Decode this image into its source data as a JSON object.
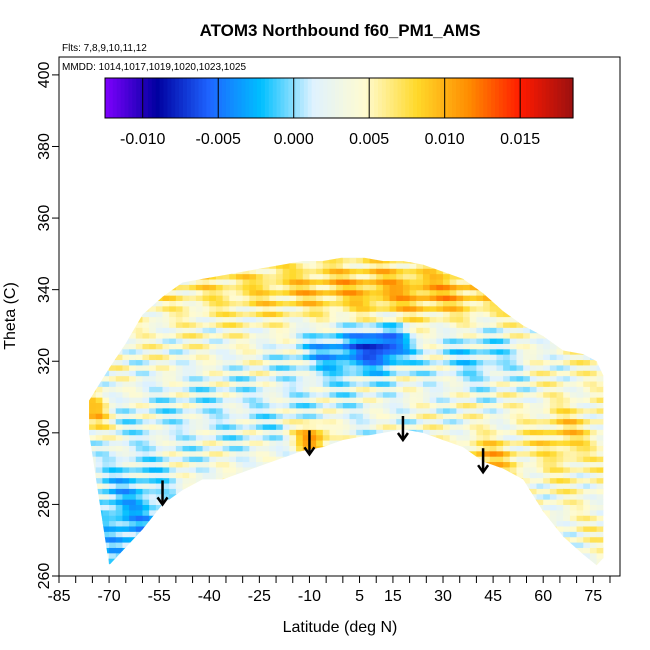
{
  "chart_data": {
    "type": "heatmap",
    "title": "ATOM3 Northbound f60_PM1_AMS",
    "subtitle_lines": [
      "Flts: 7,8,9,10,11,12",
      "MMDD: 1014,1017,1019,1020,1023,1025"
    ],
    "xlabel": "Latitude (deg N)",
    "ylabel": "Theta (C)",
    "xlim": [
      -85,
      83
    ],
    "ylim": [
      260,
      405
    ],
    "x_tick_labels": [
      "-85",
      "-70",
      "-55",
      "-40",
      "-25",
      "-10",
      "5",
      "15",
      "30",
      "45",
      "60",
      "75"
    ],
    "x_tick_values": [
      -85,
      -70,
      -55,
      -40,
      -25,
      -10,
      5,
      15,
      30,
      45,
      60,
      75
    ],
    "y_tick_labels": [
      "260",
      "280",
      "300",
      "320",
      "340",
      "360",
      "380",
      "400"
    ],
    "y_tick_values": [
      260,
      280,
      300,
      320,
      340,
      360,
      380,
      400
    ],
    "colorbar": {
      "min": -0.0125,
      "max": 0.0185,
      "tick_values": [
        -0.01,
        -0.005,
        0.0,
        0.005,
        0.01,
        0.015
      ],
      "tick_labels": [
        "-0.010",
        "-0.005",
        "0.000",
        "0.005",
        "0.010",
        "0.015"
      ],
      "colors": [
        "#7f00ff",
        "#0000a0",
        "#1e64ff",
        "#00bfff",
        "#dff2ff",
        "#fffbd0",
        "#ffd92a",
        "#ff8c00",
        "#ff1a00",
        "#9b1010"
      ]
    },
    "data_envelope": {
      "lat": [
        -76,
        -70,
        -65,
        -60,
        -54,
        -48,
        -42,
        -36,
        -30,
        -24,
        -18,
        -12,
        -6,
        0,
        6,
        12,
        18,
        24,
        30,
        36,
        42,
        48,
        54,
        60,
        66,
        72,
        76,
        78
      ],
      "theta_bottom": [
        300,
        263,
        268,
        273,
        280,
        284,
        287,
        287,
        289,
        291,
        293,
        295,
        296,
        298,
        299,
        300,
        301,
        300,
        298,
        296,
        292,
        290,
        287,
        278,
        271,
        266,
        263,
        265
      ],
      "theta_top": [
        309,
        318,
        325,
        333,
        338,
        342,
        343,
        344,
        345,
        346,
        347,
        348,
        348,
        349,
        349,
        348,
        348,
        347,
        345,
        343,
        339,
        334,
        330,
        327,
        323,
        322,
        320,
        316
      ]
    },
    "arrows": [
      {
        "lat": -54,
        "theta": 280
      },
      {
        "lat": -10,
        "theta": 294
      },
      {
        "lat": 18,
        "theta": 298
      },
      {
        "lat": 42,
        "theta": 289
      }
    ]
  }
}
